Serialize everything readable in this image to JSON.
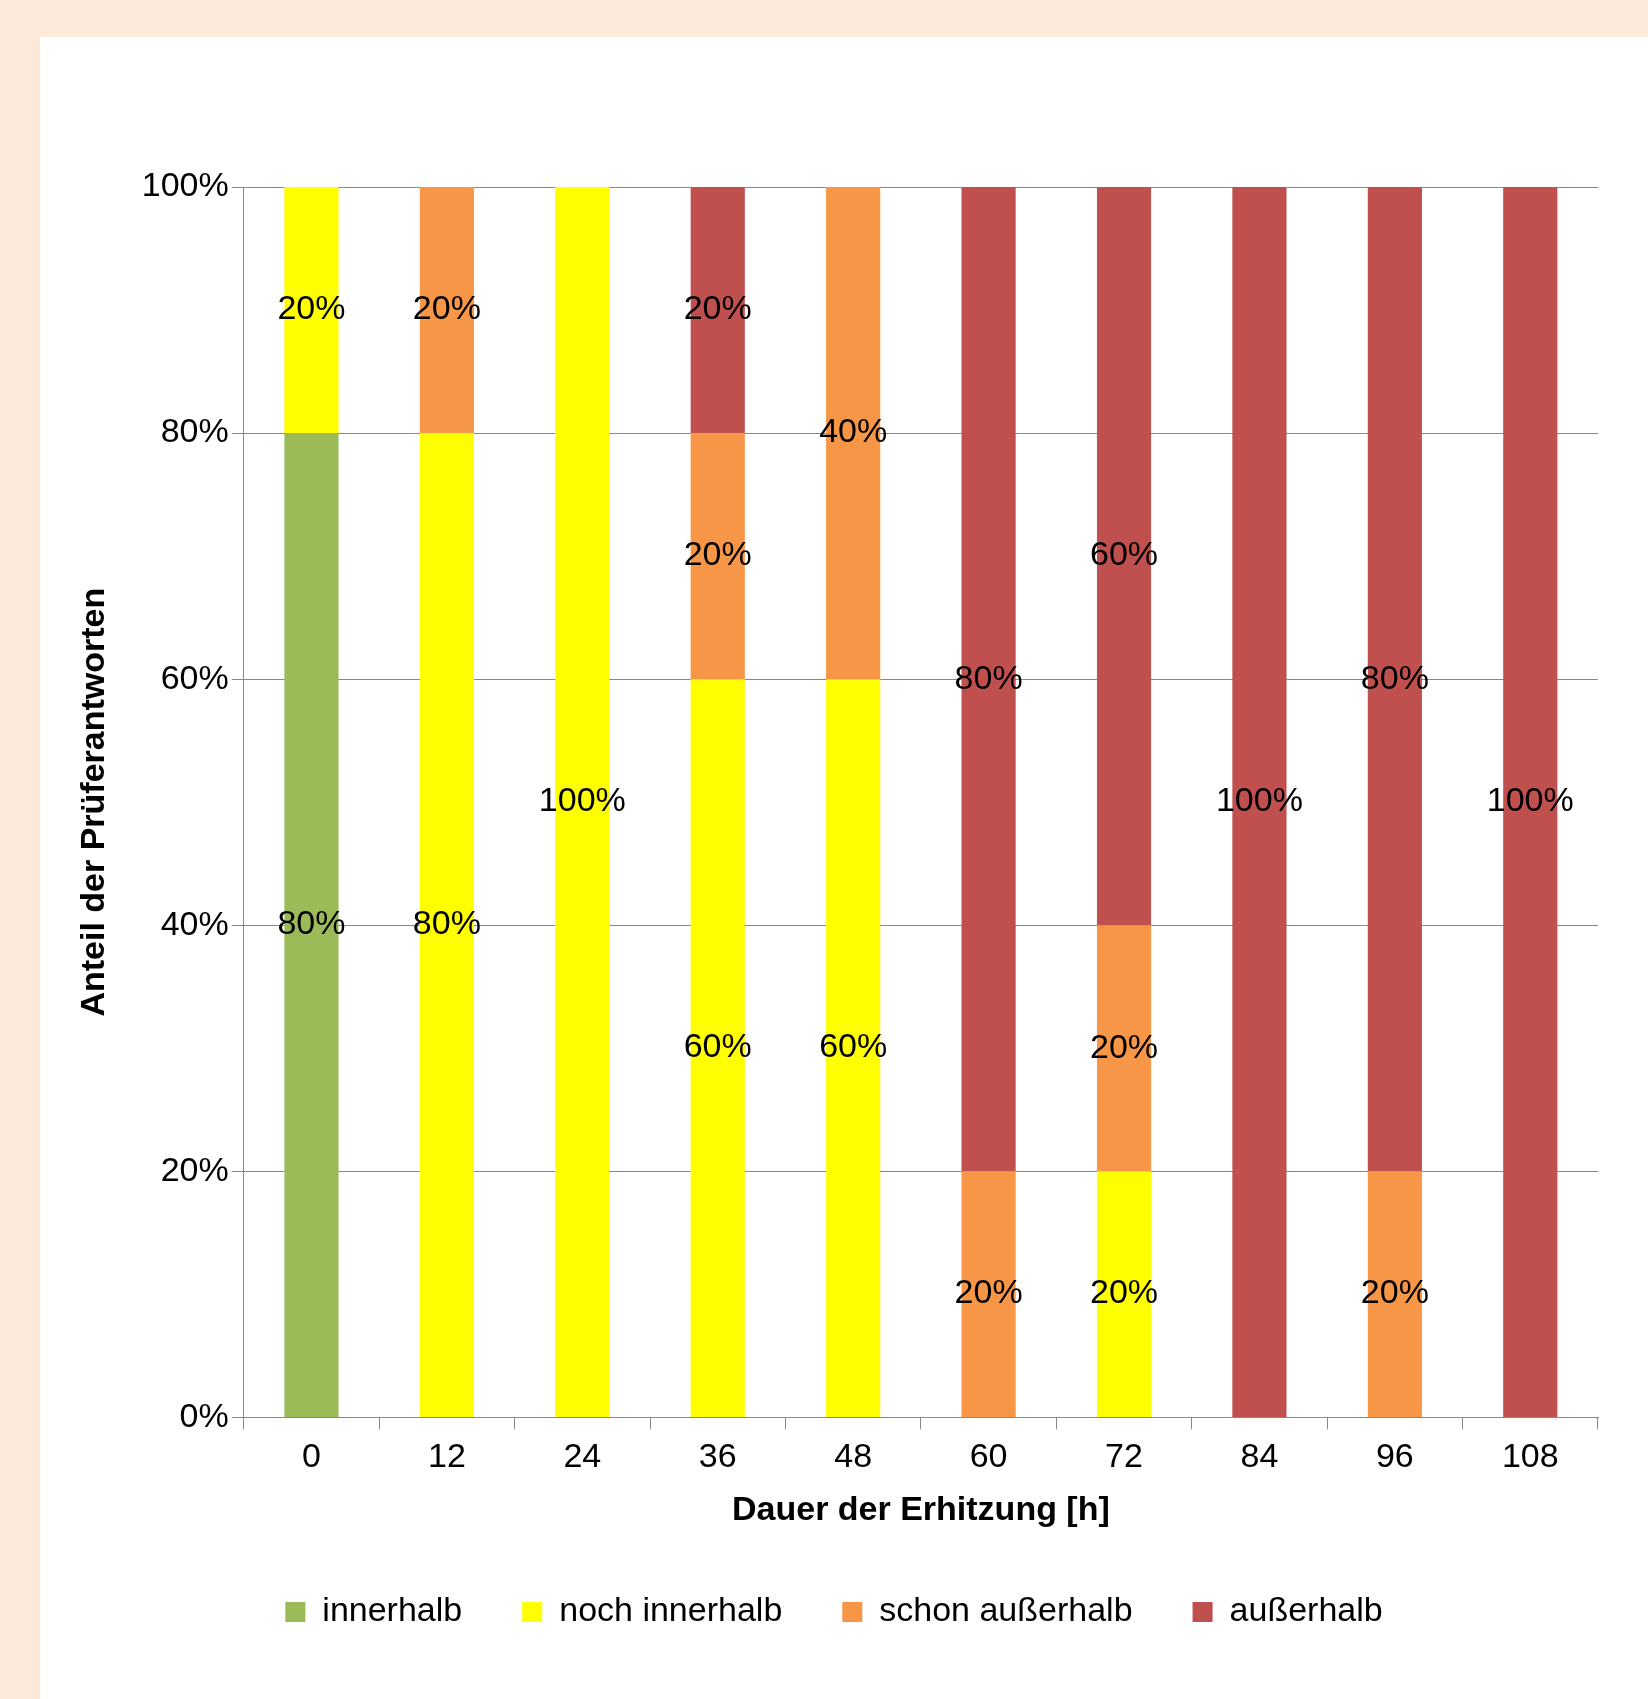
{
  "chart_data": {
    "type": "bar",
    "stacked": true,
    "xlabel": "Dauer der Erhitzung [h]",
    "ylabel": "Anteil der Prüferantworten",
    "categories": [
      "0",
      "12",
      "24",
      "36",
      "48",
      "60",
      "72",
      "84",
      "96",
      "108"
    ],
    "series": [
      {
        "name": "innerhalb",
        "color": "#9bbb59",
        "values": [
          80,
          0,
          0,
          0,
          0,
          0,
          0,
          0,
          0,
          0
        ],
        "value_labels": [
          "80%",
          null,
          null,
          null,
          null,
          null,
          null,
          null,
          null,
          null
        ]
      },
      {
        "name": "noch innerhalb",
        "color": "#ffff00",
        "values": [
          20,
          80,
          100,
          60,
          60,
          0,
          20,
          0,
          0,
          0
        ],
        "value_labels": [
          "20%",
          "80%",
          "100%",
          "60%",
          "60%",
          null,
          "20%",
          null,
          null,
          null
        ]
      },
      {
        "name": "schon außerhalb",
        "color": "#f79646",
        "values": [
          0,
          20,
          0,
          20,
          40,
          20,
          20,
          0,
          20,
          0
        ],
        "value_labels": [
          null,
          "20%",
          null,
          "20%",
          "40%",
          "20%",
          "20%",
          null,
          "20%",
          null
        ]
      },
      {
        "name": "außerhalb",
        "color": "#c0504d",
        "values": [
          0,
          0,
          0,
          20,
          0,
          80,
          60,
          100,
          80,
          100
        ],
        "value_labels": [
          null,
          null,
          null,
          "20%",
          null,
          "80%",
          "60%",
          "100%",
          "80%",
          "100%"
        ]
      }
    ],
    "ylim": [
      0,
      100
    ],
    "yticks": [
      {
        "value": 0,
        "label": "0%"
      },
      {
        "value": 20,
        "label": "20%"
      },
      {
        "value": 40,
        "label": "40%"
      },
      {
        "value": 60,
        "label": "60%"
      },
      {
        "value": 80,
        "label": "80%"
      },
      {
        "value": 100,
        "label": "100%"
      }
    ],
    "grid": "y",
    "legend": "bottom"
  }
}
